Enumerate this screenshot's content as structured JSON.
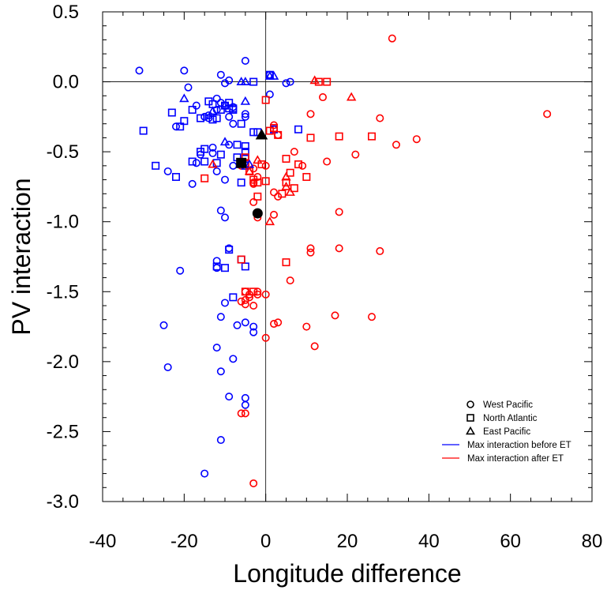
{
  "chart_data": {
    "type": "scatter",
    "title": "",
    "xlabel": "Longitude difference",
    "ylabel": "PV interaction",
    "xlim": [
      -40,
      80
    ],
    "ylim": [
      -3.0,
      0.5
    ],
    "xticks": [
      -40,
      -20,
      0,
      20,
      40,
      60,
      80
    ],
    "xtick_labels": [
      "-40",
      "-20",
      "0",
      "20",
      "40",
      "60",
      "80"
    ],
    "yticks": [
      0.5,
      0.0,
      -0.5,
      -1.0,
      -1.5,
      -2.0,
      -2.5,
      -3.0
    ],
    "ytick_labels": [
      "0.5",
      "0.0",
      "-0.5",
      "-1.0",
      "-1.5",
      "-2.0",
      "-2.5",
      "-3.0"
    ],
    "grid": false,
    "reference_lines": {
      "x": 0,
      "y": 0
    },
    "legend_position": "bottom-right",
    "legend": [
      {
        "marker": "circle",
        "label": "West Pacific"
      },
      {
        "marker": "square",
        "label": "North Atlantic"
      },
      {
        "marker": "triangle",
        "label": "East Pacific"
      },
      {
        "line": true,
        "color": "#0000ff",
        "label": "Max interaction before ET"
      },
      {
        "line": true,
        "color": "#ff0000",
        "label": "Max interaction after ET"
      }
    ],
    "colors": {
      "before": "#0000ff",
      "after": "#ff0000",
      "mean": "#000000"
    },
    "series": [
      {
        "name": "West Pacific",
        "marker": "circle",
        "color": "#0000ff",
        "x": [
          -31,
          -20,
          -19,
          -17,
          -14,
          -22,
          -12,
          -11,
          -10,
          -9,
          -8,
          -5,
          -5,
          -11,
          -10,
          -9,
          -13,
          -13,
          -16,
          -17,
          -12,
          -8,
          -9,
          -10,
          -12,
          -8,
          -14,
          -15,
          -24,
          -18,
          -11,
          -10,
          -9,
          -3,
          -3,
          -12,
          -12,
          -21,
          -10,
          -25,
          -24,
          -7,
          -5,
          -12,
          -11,
          -11,
          -9,
          -8,
          -5,
          -5,
          -11,
          -15,
          -5,
          1,
          1,
          5,
          6
        ],
        "y": [
          0.08,
          0.08,
          -0.04,
          -0.17,
          -0.26,
          -0.32,
          -0.12,
          -0.15,
          -0.17,
          -0.25,
          -0.3,
          -0.23,
          -0.25,
          0.05,
          -0.01,
          0.01,
          -0.47,
          -0.51,
          -0.52,
          -0.58,
          -0.64,
          -0.6,
          -0.45,
          -0.7,
          -0.2,
          -0.18,
          -0.24,
          -0.25,
          -0.64,
          -0.73,
          -0.92,
          -0.97,
          -1.19,
          -1.75,
          -1.79,
          -1.28,
          -1.33,
          -1.35,
          -1.58,
          -1.74,
          -2.04,
          -1.74,
          -1.72,
          -1.9,
          -2.07,
          -2.56,
          -2.25,
          -1.98,
          -2.26,
          -2.31,
          -1.68,
          -2.8,
          0.15,
          -0.09,
          0.05,
          -0.01,
          0.0
        ]
      },
      {
        "name": "West Pacific",
        "marker": "circle",
        "color": "#ff0000",
        "x": [
          31,
          69,
          2,
          2,
          3,
          11,
          14,
          15,
          18,
          22,
          26,
          28,
          32,
          37,
          7,
          9,
          3,
          2,
          -2,
          -3,
          -3,
          -2,
          -3,
          -6,
          0,
          2,
          6,
          -5,
          -6,
          -5,
          0,
          0,
          -3,
          -4,
          -5,
          -2,
          -2,
          3,
          10,
          11,
          11,
          17,
          18,
          28,
          12,
          -4,
          -3,
          -5,
          -6,
          2,
          -3
        ],
        "y": [
          0.31,
          -0.23,
          -0.31,
          -0.34,
          -0.38,
          -0.23,
          -0.11,
          -0.57,
          -0.93,
          -0.52,
          -1.68,
          -0.26,
          -0.45,
          -0.41,
          -0.5,
          -0.6,
          -0.82,
          -0.95,
          -0.97,
          -0.86,
          -0.73,
          -0.68,
          -0.62,
          -0.6,
          -0.6,
          -0.79,
          -1.42,
          -1.5,
          -1.57,
          -1.56,
          -1.52,
          -1.83,
          -1.6,
          -1.54,
          -1.59,
          -1.52,
          -1.5,
          -1.72,
          -1.75,
          -1.22,
          -1.19,
          -1.67,
          -1.19,
          -1.21,
          -1.89,
          -1.52,
          -2.87,
          -2.37,
          -2.37,
          -1.73,
          -0.72
        ],
        "_note": ""
      },
      {
        "name": "North Atlantic",
        "marker": "square",
        "color": "#0000ff",
        "x": [
          -30,
          -23,
          -20,
          -18,
          -15,
          -16,
          -13,
          -12,
          -11,
          -10,
          -9,
          -9,
          -8,
          -8,
          -6,
          -5,
          -5,
          -7,
          -16,
          -13,
          -14,
          -18,
          -21,
          -27,
          -22,
          -15,
          -12,
          -11,
          -5,
          -5,
          -6,
          -6,
          -12,
          -10,
          -9,
          -8,
          -5,
          -7,
          -3,
          -3,
          -2,
          1,
          2,
          8
        ],
        "y": [
          -0.35,
          -0.22,
          -0.28,
          -0.57,
          -0.57,
          -0.5,
          -0.27,
          -0.26,
          -0.2,
          -0.17,
          -0.15,
          -0.19,
          -0.19,
          -0.2,
          -0.3,
          -0.5,
          -0.46,
          -0.54,
          -0.26,
          -0.16,
          -0.14,
          -0.2,
          -0.32,
          -0.6,
          -0.68,
          -0.48,
          -0.58,
          -0.52,
          -0.55,
          -0.6,
          -0.72,
          -1.27,
          -1.32,
          -1.33,
          -1.2,
          -1.54,
          -1.32,
          -0.45,
          0.0,
          -0.36,
          -0.36,
          0.05,
          -0.34,
          -0.34
        ]
      },
      {
        "name": "North Atlantic",
        "marker": "square",
        "color": "#ff0000",
        "x": [
          -15,
          -5,
          -4,
          -3,
          -2,
          -2,
          -1,
          0,
          0,
          1,
          2,
          3,
          4,
          5,
          5,
          6,
          7,
          8,
          10,
          11,
          13,
          15,
          18,
          26,
          -6,
          -5,
          -3,
          5,
          -5
        ],
        "y": [
          -0.69,
          -0.54,
          -0.64,
          -0.7,
          -0.72,
          -0.82,
          -0.59,
          -0.71,
          -0.13,
          -0.35,
          -0.33,
          -0.38,
          -0.8,
          -0.72,
          -0.55,
          -0.65,
          -0.76,
          -0.59,
          -0.68,
          -0.4,
          0.0,
          0.0,
          -0.39,
          -0.39,
          -1.27,
          -1.5,
          -1.5,
          -1.29,
          -0.58
        ]
      },
      {
        "name": "East Pacific",
        "marker": "triangle",
        "color": "#0000ff",
        "x": [
          -20,
          -13,
          -10,
          -6,
          -5,
          -5,
          -4,
          1,
          2
        ],
        "y": [
          -0.12,
          -0.21,
          -0.43,
          0.0,
          -0.14,
          0.0,
          -0.59,
          0.04,
          0.04
        ]
      },
      {
        "name": "East Pacific",
        "marker": "triangle",
        "color": "#ff0000",
        "x": [
          -13,
          12,
          21,
          -4,
          -2,
          1,
          5,
          5,
          6
        ],
        "y": [
          -0.59,
          0.01,
          -0.11,
          -0.64,
          -0.56,
          -1.0,
          -0.68,
          -0.75,
          -0.79
        ]
      },
      {
        "name": "",
        "marker": "circle",
        "color": "#000000",
        "filled": true,
        "x": [
          -2
        ],
        "y": [
          -0.94
        ]
      },
      {
        "name": "",
        "marker": "square",
        "color": "#000000",
        "filled": true,
        "x": [
          -6
        ],
        "y": [
          -0.58
        ]
      },
      {
        "name": "",
        "marker": "triangle",
        "color": "#000000",
        "filled": true,
        "x": [
          -1
        ],
        "y": [
          -0.38
        ]
      }
    ]
  }
}
